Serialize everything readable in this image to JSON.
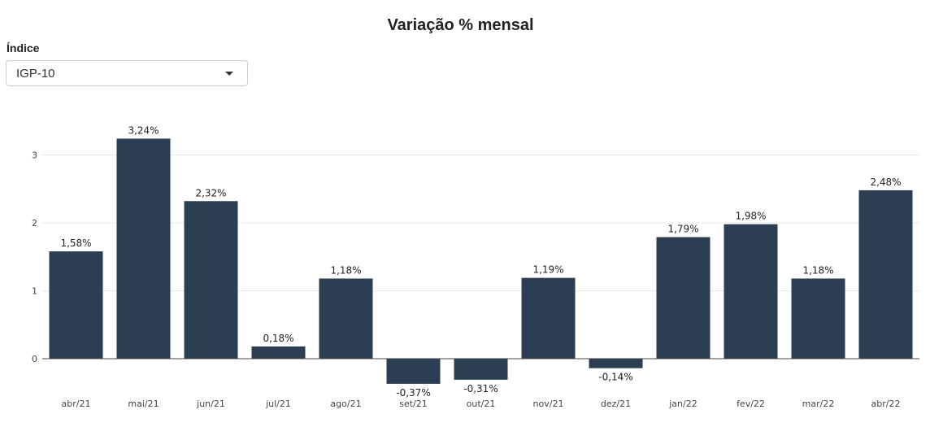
{
  "filter": {
    "label": "Índice",
    "selected": "IGP-10"
  },
  "chart_data": {
    "type": "bar",
    "title": "Variação % mensal",
    "categories": [
      "abr/21",
      "mai/21",
      "jun/21",
      "jul/21",
      "ago/21",
      "set/21",
      "out/21",
      "nov/21",
      "dez/21",
      "jan/22",
      "fev/22",
      "mar/22",
      "abr/22"
    ],
    "values": [
      1.58,
      3.24,
      2.32,
      0.18,
      1.18,
      -0.37,
      -0.31,
      1.19,
      -0.14,
      1.79,
      1.98,
      1.18,
      2.48
    ],
    "data_labels": [
      "1,58%",
      "3,24%",
      "2,32%",
      "0,18%",
      "1,18%",
      "-0,37%",
      "-0,31%",
      "1,19%",
      "-0,14%",
      "1,79%",
      "1,98%",
      "1,18%",
      "2,48%"
    ],
    "yticks": [
      0,
      1,
      2,
      3
    ],
    "ylim": [
      -0.4,
      3.3
    ],
    "xlabel": "",
    "ylabel": "",
    "grid": true,
    "legend": "none",
    "bar_color": "#2b3e52",
    "grid_color": "#e9e9e9",
    "zero_line_color": "#444444"
  }
}
